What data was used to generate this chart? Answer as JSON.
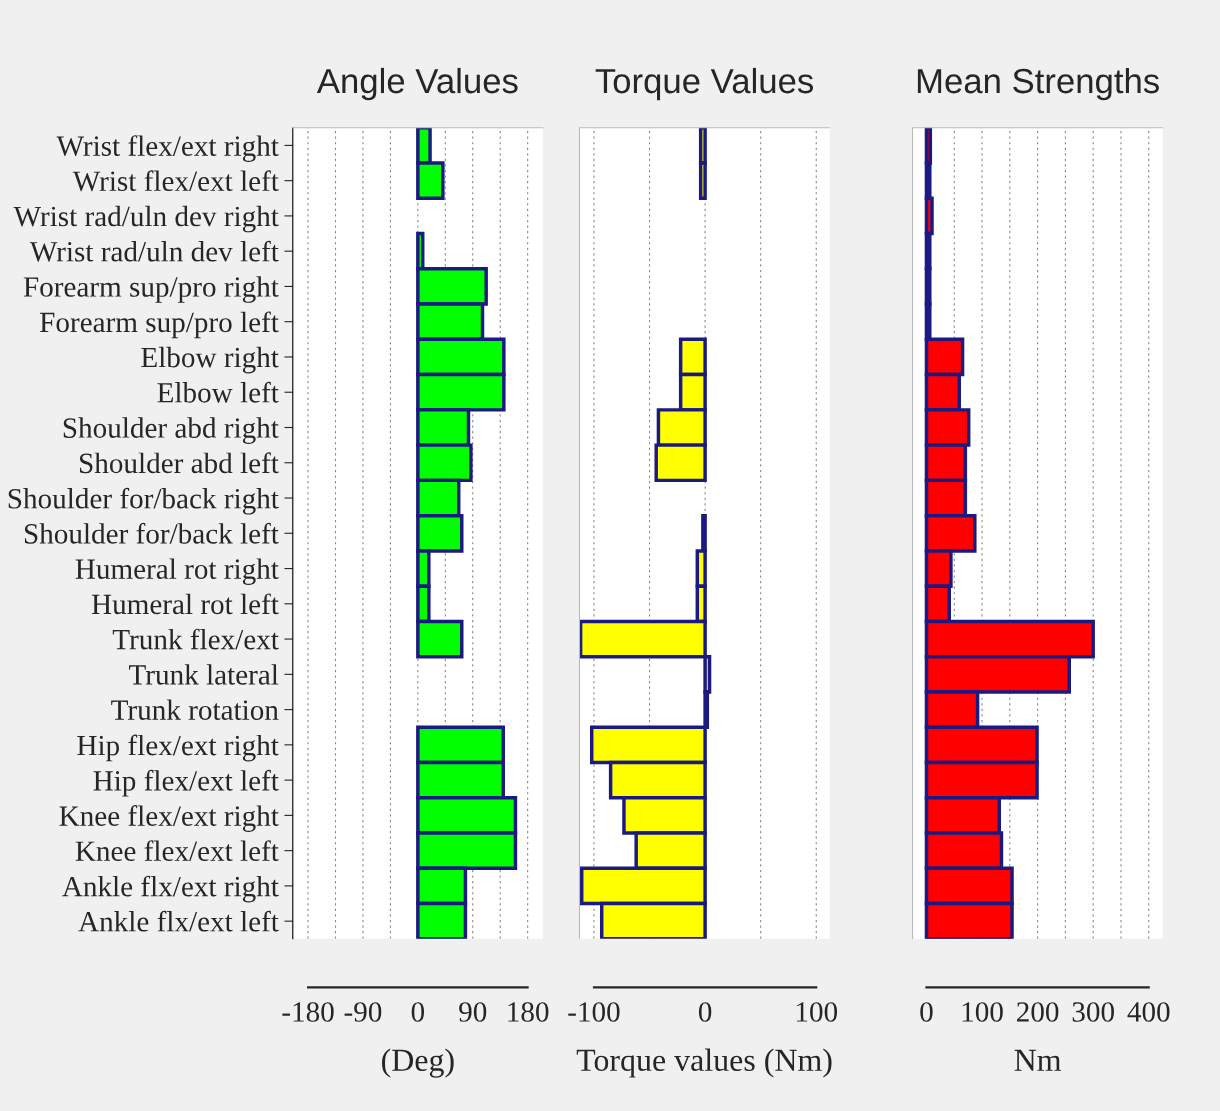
{
  "chart_data": [
    {
      "type": "bar",
      "orientation": "horizontal",
      "title": "Angle Values",
      "xlabel": "(Deg)",
      "categories": [
        "Wrist flex/ext right",
        "Wrist flex/ext left",
        "Wrist rad/uln dev right",
        "Wrist rad/uln dev left",
        "Forearm sup/pro right",
        "Forearm sup/pro left",
        "Elbow right",
        "Elbow left",
        "Shoulder abd right",
        "Shoulder abd left",
        "Shoulder for/back right",
        "Shoulder for/back left",
        "Humeral rot right",
        "Humeral rot left",
        "Trunk flex/ext",
        "Trunk lateral",
        "Trunk rotation",
        "Hip flex/ext right",
        "Hip flex/ext left",
        "Knee flex/ext right",
        "Knee flex/ext left",
        "Ankle flx/ext right",
        "Ankle flx/ext left"
      ],
      "series": [
        {
          "color": "#00ff00",
          "values": [
            20,
            41,
            0,
            8,
            112,
            106,
            141,
            141,
            83,
            87,
            67,
            72,
            18,
            18,
            72,
            0,
            0,
            140,
            140,
            160,
            160,
            78,
            78
          ]
        }
      ],
      "xlim": [
        -205,
        205
      ],
      "xticks": [
        -180,
        {
          "value": -135,
          "label": null
        },
        -90,
        {
          "value": -45,
          "label": null
        },
        0,
        {
          "value": 45,
          "label": null
        },
        90,
        {
          "value": 135,
          "label": null
        },
        180
      ],
      "grid": "x"
    },
    {
      "type": "bar",
      "orientation": "horizontal",
      "title": "Torque Values",
      "xlabel": "Torque values (Nm)",
      "tick_labels": "x",
      "series": [
        {
          "color": "#ffff00",
          "values": [
            -4,
            -4,
            0,
            0,
            0,
            0,
            -22,
            -22,
            -42,
            -44,
            0,
            -2,
            -7,
            -7,
            -112,
            4,
            2,
            -102,
            -85,
            -73,
            -62,
            -111,
            -93
          ]
        }
      ],
      "xlim": [
        -113,
        112
      ],
      "xticks": [
        -100,
        {
          "value": -50,
          "label": null
        },
        0,
        {
          "value": 50,
          "label": null
        },
        100
      ],
      "grid": "x"
    },
    {
      "type": "bar",
      "orientation": "horizontal",
      "title": "Mean Strengths",
      "xlabel": "Nm",
      "tick_labels": "x",
      "series": [
        {
          "color": "#ff0000",
          "values": [
            7,
            6,
            10,
            6,
            6,
            6,
            65,
            59,
            76,
            70,
            70,
            87,
            44,
            41,
            300,
            257,
            92,
            199,
            199,
            131,
            135,
            154,
            154
          ]
        }
      ],
      "xlim": [
        -25,
        425
      ],
      "xticks": [
        0,
        {
          "value": 50,
          "label": null
        },
        100,
        {
          "value": 150,
          "label": null
        },
        200,
        {
          "value": 250,
          "label": null
        },
        300,
        {
          "value": 350,
          "label": null
        },
        400
      ],
      "grid": "x"
    }
  ]
}
